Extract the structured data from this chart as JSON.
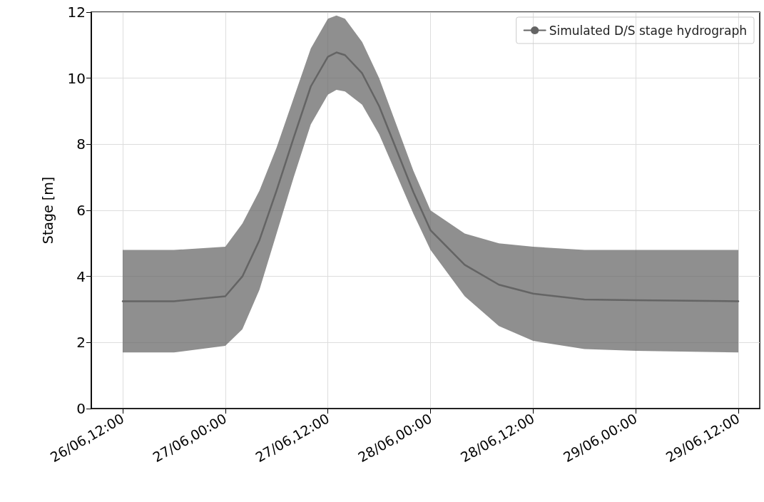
{
  "chart_data": {
    "type": "line",
    "ylabel": "Stage [m]",
    "x": [
      "--06-26T12:00",
      "--06-26T18:00",
      "--06-27T00:00",
      "--06-27T02:00",
      "--06-27T04:00",
      "--06-27T06:00",
      "--06-27T08:00",
      "--06-27T10:00",
      "--06-27T12:00",
      "--06-27T13:00",
      "--06-27T14:00",
      "--06-27T16:00",
      "--06-27T18:00",
      "--06-27T20:00",
      "--06-27T22:00",
      "--06-28T00:00",
      "--06-28T04:00",
      "--06-28T08:00",
      "--06-28T12:00",
      "--06-28T18:00",
      "--06-29T00:00",
      "--06-29T12:00"
    ],
    "series": [
      {
        "name": "Simulated D/S stage hydrograph",
        "color": "#646464",
        "values": [
          3.25,
          3.25,
          3.4,
          4.0,
          5.1,
          6.6,
          8.2,
          9.75,
          10.65,
          10.78,
          10.7,
          10.15,
          9.15,
          7.85,
          6.55,
          5.4,
          4.35,
          3.75,
          3.48,
          3.3,
          3.28,
          3.25
        ],
        "lower": [
          1.7,
          1.7,
          1.9,
          2.4,
          3.6,
          5.3,
          7.0,
          8.6,
          9.5,
          9.65,
          9.6,
          9.2,
          8.3,
          7.1,
          5.9,
          4.8,
          3.4,
          2.5,
          2.05,
          1.8,
          1.75,
          1.7
        ],
        "upper": [
          4.8,
          4.8,
          4.9,
          5.6,
          6.6,
          7.9,
          9.4,
          10.9,
          11.8,
          11.9,
          11.8,
          11.1,
          10.0,
          8.6,
          7.2,
          6.0,
          5.3,
          5.0,
          4.9,
          4.8,
          4.8,
          4.8
        ]
      }
    ],
    "xlim": [
      "--06-26T08:20",
      "--06-29T14:30"
    ],
    "xticks": [
      {
        "value": "--06-26T12:00",
        "label": "26/06,12:00"
      },
      {
        "value": "--06-27T00:00",
        "label": "27/06,00:00"
      },
      {
        "value": "--06-27T12:00",
        "label": "27/06,12:00"
      },
      {
        "value": "--06-28T00:00",
        "label": "28/06,00:00"
      },
      {
        "value": "--06-28T12:00",
        "label": "28/06,12:00"
      },
      {
        "value": "--06-29T00:00",
        "label": "29/06,00:00"
      },
      {
        "value": "--06-29T12:00",
        "label": "29/06,12:00"
      }
    ],
    "ylim": [
      0,
      12
    ],
    "yticks": [
      0,
      2,
      4,
      6,
      8,
      10,
      12
    ],
    "grid": true,
    "legend": "top right",
    "line_style": "solid",
    "marker": "none"
  }
}
